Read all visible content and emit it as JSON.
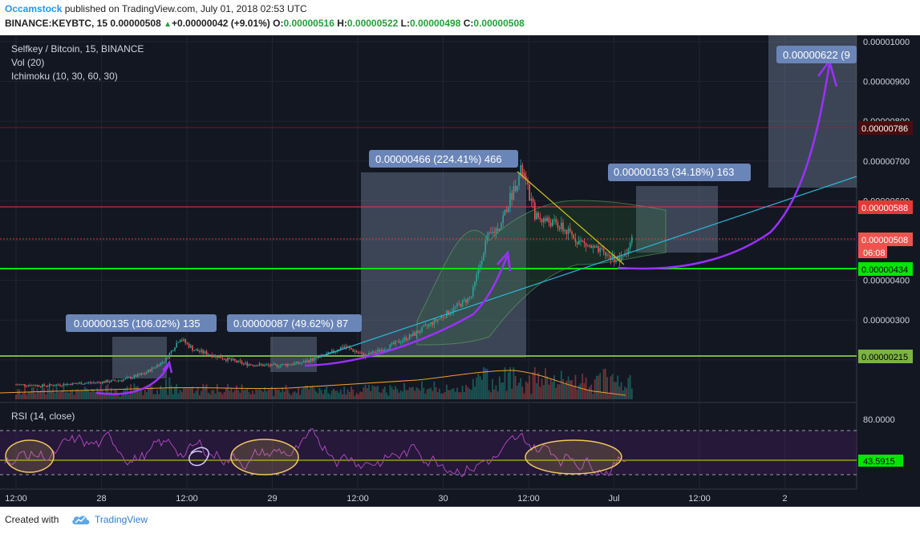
{
  "header": {
    "author": "Occamstock",
    "published_text": "published on TradingView.com, July 01, 2018 02:53 UTC",
    "symbol_line": "BINANCE:KEYBTC, 15",
    "last": "0.00000508",
    "change": "+0.00000042 (+9.01%)",
    "open_label": "O:",
    "open": "0.00000516",
    "high_label": "H:",
    "high": "0.00000522",
    "low_label": "L:",
    "low": "0.00000498",
    "close_label": "C:",
    "close": "0.00000508"
  },
  "legend": {
    "title": "Selfkey / Bitcoin, 15, BINANCE",
    "vol": "Vol (20)",
    "ichimoku": "Ichimoku (10, 30, 60, 30)",
    "rsi": "RSI (14, close)"
  },
  "footer": {
    "created_with": "Created with",
    "brand": "TradingView",
    "icon": "tradingview-cloud-icon"
  },
  "colors": {
    "background": "#131722",
    "bull": "#26a69a",
    "bear": "#ef5350",
    "rsi": "#9c27b0",
    "annotation": "#6a85b8",
    "green_line": "#00e600",
    "red_line": "#e53935",
    "purple_arrow": "#9b30ff",
    "trend_cyan": "#2bb8d8",
    "trend_yellow": "#d4c21a"
  },
  "chart_data": {
    "type": "candlestick",
    "y_axis": {
      "ticks": [
        "0.00001000",
        "0.00000900",
        "0.00000800",
        "0.00000700",
        "0.00000600",
        "0.00000500",
        "0.00000400",
        "0.00000300",
        "0.00000200"
      ],
      "range": [
        1.1e-06,
        1.01e-05
      ]
    },
    "x_axis": {
      "ticks": [
        "12:00",
        "28",
        "12:00",
        "29",
        "12:00",
        "30",
        "12:00",
        "Jul",
        "12:00",
        "2"
      ]
    },
    "price_labels": [
      {
        "value": "0.00000786",
        "kind": "level"
      },
      {
        "value": "0.00000588",
        "kind": "resistance"
      },
      {
        "value": "0.00000508",
        "kind": "last"
      },
      {
        "value": "0.00000434",
        "kind": "support"
      },
      {
        "value": "0.00000215",
        "kind": "support"
      }
    ],
    "countdown": "06:08",
    "measurements": [
      {
        "text": "0.00000135 (106.02%) 135"
      },
      {
        "text": "0.00000087 (49.62%) 87"
      },
      {
        "text": "0.00000466 (224.41%) 466"
      },
      {
        "text": "0.00000163 (34.18%) 163"
      },
      {
        "text": "0.00000622 (9"
      }
    ],
    "rsi": {
      "value": "43.5915",
      "upper_tick": "80.0000",
      "bands": [
        70,
        30
      ]
    },
    "close_path": [
      [
        "06-27 12:00",
        1.38e-06
      ],
      [
        "06-27 16:00",
        1.35e-06
      ],
      [
        "06-27 20:00",
        1.4e-06
      ],
      [
        "06-28 00:00",
        1.44e-06
      ],
      [
        "06-28 03:00",
        1.5e-06
      ],
      [
        "06-28 06:00",
        1.65e-06
      ],
      [
        "06-28 09:00",
        2e-06
      ],
      [
        "06-28 11:00",
        2.55e-06
      ],
      [
        "06-28 13:00",
        2.25e-06
      ],
      [
        "06-28 16:00",
        2.1e-06
      ],
      [
        "06-28 20:00",
        1.9e-06
      ],
      [
        "06-29 00:00",
        1.85e-06
      ],
      [
        "06-29 04:00",
        1.92e-06
      ],
      [
        "06-29 08:00",
        2.15e-06
      ],
      [
        "06-29 10:00",
        2.35e-06
      ],
      [
        "06-29 13:00",
        2.1e-06
      ],
      [
        "06-29 16:00",
        2.3e-06
      ],
      [
        "06-29 20:00",
        2.65e-06
      ],
      [
        "06-30 00:00",
        3.1e-06
      ],
      [
        "06-30 04:00",
        3.6e-06
      ],
      [
        "06-30 06:00",
        5e-06
      ],
      [
        "06-30 08:00",
        5.4e-06
      ],
      [
        "06-30 11:00",
        6.8e-06
      ],
      [
        "06-30 13:00",
        5.6e-06
      ],
      [
        "06-30 16:00",
        5.4e-06
      ],
      [
        "06-30 19:00",
        5e-06
      ],
      [
        "06-30 22:00",
        4.7e-06
      ],
      [
        "07-01 01:00",
        4.5e-06
      ],
      [
        "07-01 02:45",
        5.08e-06
      ]
    ]
  }
}
